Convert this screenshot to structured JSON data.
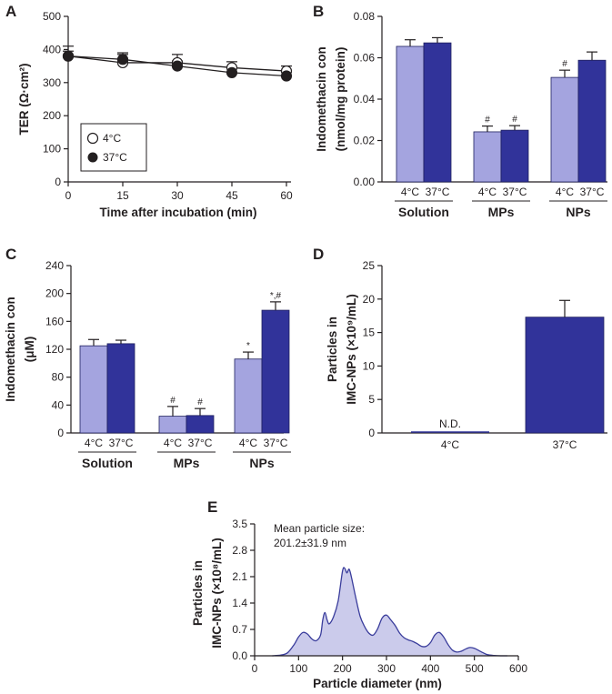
{
  "colors": {
    "light": "#a4a4df",
    "dark": "#31339a",
    "curve": "#3a3d9c",
    "fill": "#cbcbeb",
    "ink": "#231f20"
  },
  "panel_labels": [
    "A",
    "B",
    "C",
    "D",
    "E"
  ],
  "panelA": {
    "label": "A",
    "ylabel": "TER (Ω·cm²)",
    "xlabel": "Time after incubation (min)",
    "xticks": [
      "0",
      "15",
      "30",
      "45",
      "60"
    ],
    "yticks": [
      "0",
      "100",
      "200",
      "300",
      "400",
      "500"
    ],
    "legend": [
      "4°C",
      "37°C"
    ]
  },
  "panelB": {
    "label": "B",
    "ylabel": "Indomethacin con",
    "ylabel2": "(nmol/mg protein)",
    "yticks": [
      "0.00",
      "0.02",
      "0.04",
      "0.06",
      "0.08"
    ],
    "groups": [
      "Solution",
      "MPs",
      "NPs"
    ],
    "temps": [
      "4°C",
      "37°C"
    ]
  },
  "panelC": {
    "label": "C",
    "ylabel": "Indomethacin con",
    "ylabel2": "(μM)",
    "yticks": [
      "0",
      "40",
      "80",
      "120",
      "160",
      "200",
      "240"
    ],
    "groups": [
      "Solution",
      "MPs",
      "NPs"
    ],
    "temps": [
      "4°C",
      "37°C"
    ]
  },
  "panelD": {
    "label": "D",
    "ylabel": "Particles in",
    "ylabel2": "IMC-NPs (×10⁹/mL)",
    "yticks": [
      "0",
      "5",
      "10",
      "15",
      "20",
      "25"
    ],
    "categories": [
      "4°C",
      "37°C"
    ],
    "nd_label": "N.D."
  },
  "panelE": {
    "label": "E",
    "ylabel": "Particles in",
    "ylabel2": "IMC-NPs (×10⁸/mL)",
    "xlabel": "Particle diameter (nm)",
    "xticks": [
      "0",
      "100",
      "200",
      "300",
      "400",
      "500",
      "600"
    ],
    "yticks": [
      "0.0",
      "0.7",
      "1.4",
      "2.1",
      "2.8",
      "3.5"
    ],
    "annotation_line1": "Mean particle size:",
    "annotation_line2": "201.2±31.9 nm"
  },
  "chart_data": [
    {
      "id": "A",
      "type": "line",
      "title": "",
      "xlabel": "Time after incubation (min)",
      "ylabel": "TER (Ω·cm²)",
      "x": [
        0,
        15,
        30,
        45,
        60
      ],
      "xlim": [
        0,
        64
      ],
      "ylim": [
        0,
        500
      ],
      "series": [
        {
          "name": "4°C",
          "marker": "open-circle",
          "values": [
            380,
            360,
            360,
            345,
            335
          ],
          "errors": [
            30,
            25,
            25,
            18,
            15
          ]
        },
        {
          "name": "37°C",
          "marker": "filled-circle",
          "values": [
            380,
            370,
            350,
            330,
            320
          ],
          "errors": [
            15,
            20,
            15,
            15,
            12
          ]
        }
      ],
      "legend_position": "bottom-left"
    },
    {
      "id": "B",
      "type": "bar",
      "ylabel": "Indomethacin con (nmol/mg protein)",
      "ylim": [
        0,
        0.08
      ],
      "categories": [
        "Solution",
        "MPs",
        "NPs"
      ],
      "series": [
        {
          "name": "4°C",
          "values": [
            0.0655,
            0.0242,
            0.0505
          ],
          "errors": [
            0.0032,
            0.0028,
            0.0035
          ],
          "marks": [
            "",
            "#",
            "#"
          ]
        },
        {
          "name": "37°C",
          "values": [
            0.0672,
            0.025,
            0.0588
          ],
          "errors": [
            0.0025,
            0.0022,
            0.004
          ],
          "marks": [
            "",
            "#",
            ""
          ]
        }
      ]
    },
    {
      "id": "C",
      "type": "bar",
      "ylabel": "Indomethacin con (μM)",
      "ylim": [
        0,
        240
      ],
      "categories": [
        "Solution",
        "MPs",
        "NPs"
      ],
      "series": [
        {
          "name": "4°C",
          "values": [
            125,
            24,
            106
          ],
          "errors": [
            9,
            14,
            10
          ],
          "marks": [
            "",
            "#",
            "*"
          ]
        },
        {
          "name": "37°C",
          "values": [
            128,
            25,
            176
          ],
          "errors": [
            5,
            10,
            12
          ],
          "marks": [
            "",
            "#",
            "*,#"
          ]
        }
      ]
    },
    {
      "id": "D",
      "type": "bar",
      "ylabel": "Particles in IMC-NPs (×10⁹/mL)",
      "ylim": [
        0,
        25
      ],
      "categories": [
        "4°C",
        "37°C"
      ],
      "values": [
        0,
        17.3
      ],
      "errors": [
        0,
        2.5
      ],
      "annotations": [
        "N.D.",
        ""
      ]
    },
    {
      "id": "E",
      "type": "area",
      "xlabel": "Particle diameter (nm)",
      "ylabel": "Particles in IMC-NPs (×10⁸/mL)",
      "xlim": [
        0,
        600
      ],
      "ylim": [
        0,
        3.5
      ],
      "x": [
        40,
        60,
        75,
        90,
        100,
        110,
        120,
        130,
        140,
        150,
        155,
        160,
        165,
        170,
        180,
        190,
        200,
        205,
        210,
        215,
        220,
        230,
        240,
        250,
        260,
        270,
        280,
        290,
        300,
        310,
        320,
        330,
        340,
        350,
        360,
        370,
        380,
        390,
        400,
        410,
        420,
        430,
        440,
        450,
        460,
        470,
        480,
        490,
        500,
        510,
        520,
        530,
        545,
        560,
        575
      ],
      "y": [
        0,
        0.02,
        0.08,
        0.3,
        0.5,
        0.62,
        0.58,
        0.45,
        0.4,
        0.55,
        0.95,
        1.15,
        0.95,
        0.85,
        1.05,
        1.45,
        2.25,
        2.32,
        2.2,
        2.3,
        2.1,
        1.55,
        1.05,
        0.78,
        0.6,
        0.55,
        0.72,
        1.0,
        1.08,
        0.95,
        0.8,
        0.6,
        0.48,
        0.42,
        0.38,
        0.32,
        0.25,
        0.25,
        0.35,
        0.55,
        0.62,
        0.5,
        0.3,
        0.15,
        0.1,
        0.12,
        0.18,
        0.22,
        0.2,
        0.14,
        0.08,
        0.03,
        0.01,
        0,
        0
      ],
      "annotation": "Mean particle size: 201.2±31.9 nm"
    }
  ]
}
